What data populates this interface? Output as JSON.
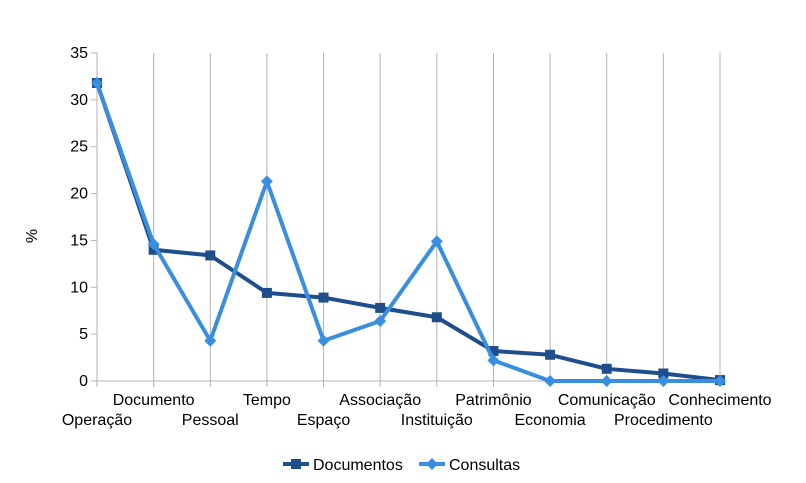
{
  "chart_data": {
    "type": "line",
    "title": "",
    "xlabel": "",
    "ylabel": "%",
    "ylim": [
      0,
      35
    ],
    "yticks": [
      0,
      5,
      10,
      15,
      20,
      25,
      30,
      35
    ],
    "grid": "vertical",
    "legend_position": "bottom",
    "categories": [
      "Operação",
      "Documento",
      "Pessoal",
      "Tempo",
      "Espaço",
      "Associação",
      "Instituição",
      "Patrimônio",
      "Economia",
      "Comunicação",
      "Procedimento",
      "Conhecimento"
    ],
    "series": [
      {
        "name": "Documentos",
        "color": "#1f4e8c",
        "marker": "square",
        "values": [
          31.8,
          14.0,
          13.4,
          9.4,
          8.9,
          7.8,
          6.8,
          3.2,
          2.8,
          1.3,
          0.8,
          0.1
        ]
      },
      {
        "name": "Consultas",
        "color": "#3a8ee0",
        "marker": "diamond",
        "values": [
          31.8,
          14.6,
          4.3,
          21.3,
          4.3,
          6.4,
          14.9,
          2.2,
          0.0,
          0.0,
          0.0,
          0.0
        ]
      }
    ]
  }
}
